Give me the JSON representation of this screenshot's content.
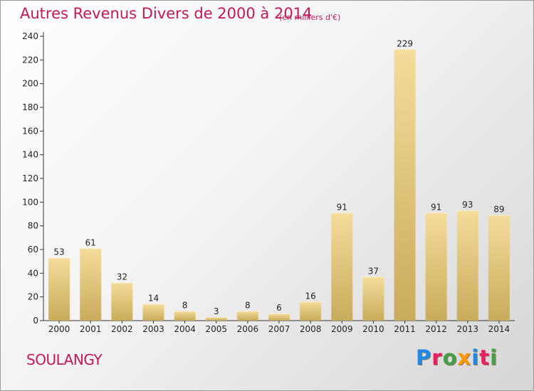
{
  "header": {
    "title": "Autres Revenus Divers de 2000 à 2014",
    "subtitle": "(en milliers d'€)"
  },
  "footer": {
    "location": "SOULANGY",
    "logo_text": "Proxiti"
  },
  "colors": {
    "title": "#c2185b",
    "bar_light": "#f5dc9a",
    "bar_dark": "#c9ab5c",
    "logo_letters": [
      "#1e88e5",
      "#e91e63",
      "#43a047",
      "#ff9800",
      "#1e88e5",
      "#e91e63",
      "#43a047"
    ]
  },
  "chart_data": {
    "type": "bar",
    "title": "Autres Revenus Divers de 2000 à 2014",
    "subtitle": "(en milliers d'€)",
    "xlabel": "",
    "ylabel": "",
    "categories": [
      "2000",
      "2001",
      "2002",
      "2003",
      "2004",
      "2005",
      "2006",
      "2007",
      "2008",
      "2009",
      "2010",
      "2011",
      "2012",
      "2013",
      "2014"
    ],
    "values": [
      53,
      61,
      32,
      14,
      8,
      3,
      8,
      6,
      16,
      91,
      37,
      229,
      91,
      93,
      89
    ],
    "ylim": [
      0,
      240
    ],
    "yticks": [
      0,
      20,
      40,
      60,
      80,
      100,
      120,
      140,
      160,
      180,
      200,
      220,
      240
    ],
    "grid": false,
    "legend": "none"
  }
}
